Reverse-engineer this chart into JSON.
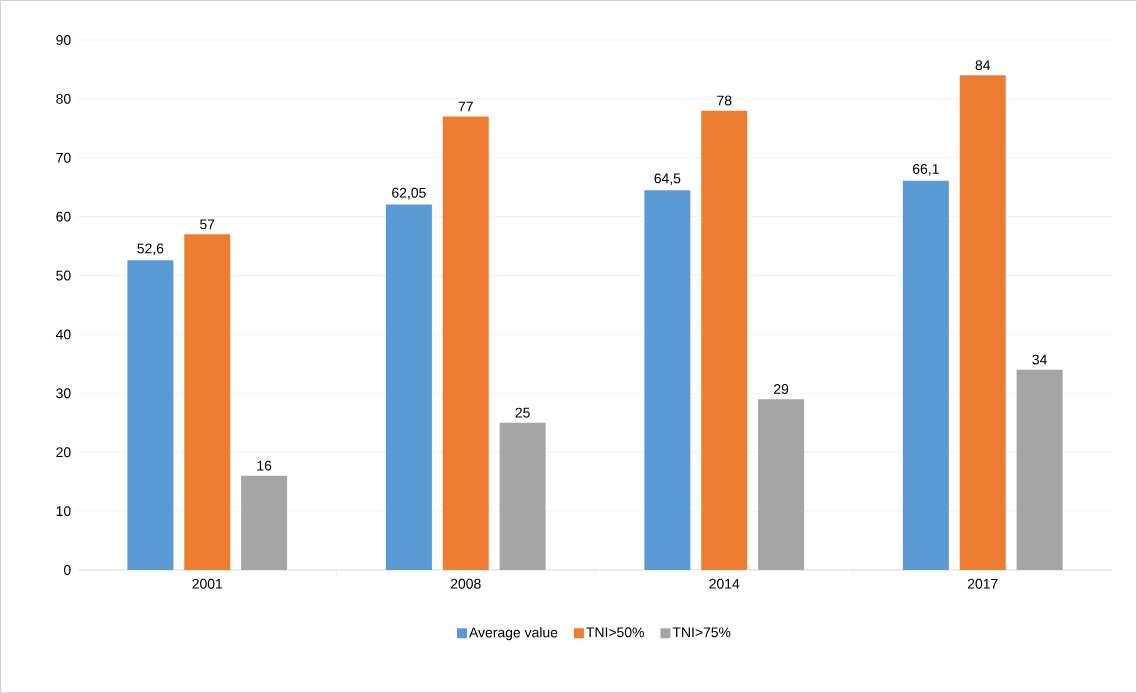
{
  "chart_data": {
    "type": "bar",
    "categories": [
      "2001",
      "2008",
      "2014",
      "2017"
    ],
    "series": [
      {
        "name": "Average value",
        "color": "#5b9bd5",
        "values": [
          52.6,
          62.05,
          64.5,
          66.1
        ],
        "value_labels": [
          "52,6",
          "62,05",
          "64,5",
          "66,1"
        ]
      },
      {
        "name": "TNI>50%",
        "color": "#ed7d31",
        "values": [
          57,
          77,
          78,
          84
        ],
        "value_labels": [
          "57",
          "77",
          "78",
          "84"
        ]
      },
      {
        "name": "TNI>75%",
        "color": "#a5a5a5",
        "values": [
          16,
          25,
          29,
          34
        ],
        "value_labels": [
          "16",
          "25",
          "29",
          "34"
        ]
      }
    ],
    "ylim": [
      0,
      90
    ],
    "yticks": [
      0,
      10,
      20,
      30,
      40,
      50,
      60,
      70,
      80,
      90
    ],
    "grid": "y",
    "legend": "bottom"
  }
}
